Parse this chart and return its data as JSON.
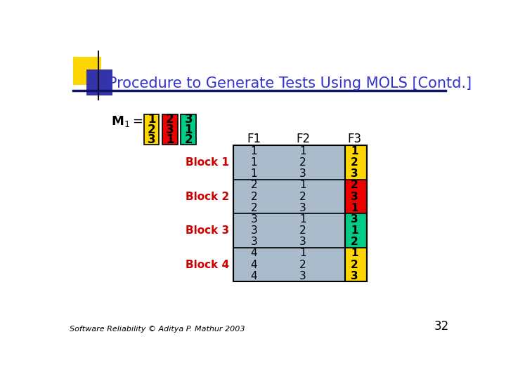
{
  "title": "Procedure to Generate Tests Using MOLS [Contd.]",
  "title_color": "#3333CC",
  "background_color": "#FFFFFF",
  "slide_number": "32",
  "footer": "Software Reliability © Aditya P. Mathur 2003",
  "m1_columns": [
    {
      "values": [
        "1",
        "2",
        "3"
      ],
      "bg": "#FFD700"
    },
    {
      "values": [
        "2",
        "3",
        "1"
      ],
      "bg": "#EE0000"
    },
    {
      "values": [
        "3",
        "1",
        "2"
      ],
      "bg": "#00CC88"
    }
  ],
  "blocks": [
    {
      "label": "Block 1",
      "f1": [
        "1",
        "1",
        "1"
      ],
      "f2": [
        "1",
        "2",
        "3"
      ],
      "f3": [
        "1",
        "2",
        "3"
      ],
      "f3_bg": "#FFD700"
    },
    {
      "label": "Block 2",
      "f1": [
        "2",
        "2",
        "2"
      ],
      "f2": [
        "1",
        "2",
        "3"
      ],
      "f3": [
        "2",
        "3",
        "1"
      ],
      "f3_bg": "#EE0000"
    },
    {
      "label": "Block 3",
      "f1": [
        "3",
        "3",
        "3"
      ],
      "f2": [
        "1",
        "2",
        "3"
      ],
      "f3": [
        "3",
        "1",
        "2"
      ],
      "f3_bg": "#00CC88"
    },
    {
      "label": "Block 4",
      "f1": [
        "4",
        "4",
        "4"
      ],
      "f2": [
        "1",
        "2",
        "3"
      ],
      "f3": [
        "1",
        "2",
        "3"
      ],
      "f3_bg": "#FFD700"
    }
  ],
  "block_label_color": "#CC0000",
  "table_bg": "#AABBCC",
  "header_line_color": "#333399",
  "deco_yellow": "#FFD700",
  "deco_blue": "#3333AA",
  "deco_bar": "#111166"
}
